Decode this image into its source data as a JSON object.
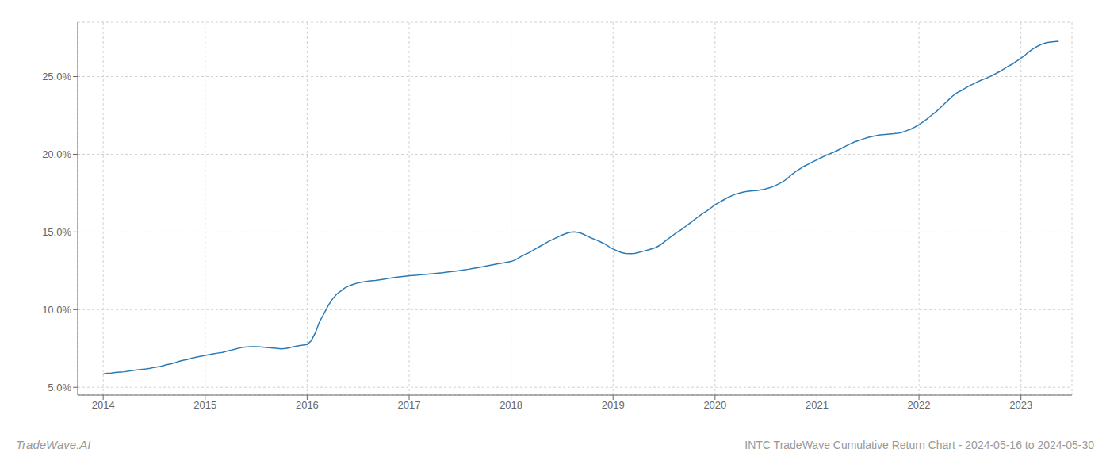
{
  "chart_data": {
    "type": "line",
    "title": "INTC TradeWave Cumulative Return Chart - 2024-05-16 to 2024-05-30",
    "annotations": [
      "TradeWave.AI"
    ],
    "grid": true,
    "xlim": [
      2013.75,
      2023.5
    ],
    "ylim": [
      4.5,
      28.5
    ],
    "xticks": [
      2014,
      2015,
      2016,
      2017,
      2018,
      2019,
      2020,
      2021,
      2022,
      2023
    ],
    "yticks": [
      {
        "value": 5.0,
        "label": "5.0%"
      },
      {
        "value": 10.0,
        "label": "10.0%"
      },
      {
        "value": 15.0,
        "label": "15.0%"
      },
      {
        "value": 20.0,
        "label": "20.0%"
      },
      {
        "value": 25.0,
        "label": "25.0%"
      }
    ],
    "series": [
      {
        "color": "#2a7ab5",
        "x": [
          2014.0,
          2014.04,
          2014.08,
          2014.12,
          2014.17,
          2014.21,
          2014.25,
          2014.29,
          2014.33,
          2014.37,
          2014.42,
          2014.46,
          2014.5,
          2014.54,
          2014.58,
          2014.62,
          2014.67,
          2014.71,
          2014.75,
          2014.79,
          2014.83,
          2014.87,
          2014.92,
          2014.96,
          2015.0,
          2015.04,
          2015.08,
          2015.12,
          2015.17,
          2015.21,
          2015.25,
          2015.29,
          2015.33,
          2015.37,
          2015.42,
          2015.46,
          2015.5,
          2015.54,
          2015.58,
          2015.62,
          2015.67,
          2015.71,
          2015.75,
          2015.79,
          2015.83,
          2015.87,
          2015.92,
          2015.96,
          2016.0,
          2016.04,
          2016.08,
          2016.12,
          2016.17,
          2016.21,
          2016.25,
          2016.29,
          2016.33,
          2016.37,
          2016.42,
          2016.46,
          2016.5,
          2016.54,
          2016.58,
          2016.62,
          2016.67,
          2016.71,
          2016.75,
          2016.79,
          2016.83,
          2016.87,
          2016.92,
          2016.96,
          2017.0,
          2017.04,
          2017.08,
          2017.12,
          2017.17,
          2017.21,
          2017.25,
          2017.29,
          2017.33,
          2017.37,
          2017.42,
          2017.46,
          2017.5,
          2017.54,
          2017.58,
          2017.62,
          2017.67,
          2017.71,
          2017.75,
          2017.79,
          2017.83,
          2017.87,
          2017.92,
          2017.96,
          2018.0,
          2018.04,
          2018.08,
          2018.12,
          2018.17,
          2018.21,
          2018.25,
          2018.29,
          2018.33,
          2018.37,
          2018.42,
          2018.46,
          2018.5,
          2018.54,
          2018.58,
          2018.62,
          2018.67,
          2018.71,
          2018.75,
          2018.79,
          2018.83,
          2018.87,
          2018.92,
          2018.96,
          2019.0,
          2019.04,
          2019.08,
          2019.12,
          2019.17,
          2019.21,
          2019.25,
          2019.29,
          2019.33,
          2019.37,
          2019.42,
          2019.46,
          2019.5,
          2019.54,
          2019.58,
          2019.62,
          2019.67,
          2019.71,
          2019.75,
          2019.79,
          2019.83,
          2019.87,
          2019.92,
          2019.96,
          2020.0,
          2020.04,
          2020.08,
          2020.12,
          2020.17,
          2020.21,
          2020.25,
          2020.29,
          2020.33,
          2020.37,
          2020.42,
          2020.46,
          2020.5,
          2020.54,
          2020.58,
          2020.62,
          2020.67,
          2020.71,
          2020.75,
          2020.79,
          2020.83,
          2020.87,
          2020.92,
          2020.96,
          2021.0,
          2021.04,
          2021.08,
          2021.12,
          2021.17,
          2021.21,
          2021.25,
          2021.29,
          2021.33,
          2021.37,
          2021.42,
          2021.46,
          2021.5,
          2021.54,
          2021.58,
          2021.62,
          2021.67,
          2021.71,
          2021.75,
          2021.79,
          2021.83,
          2021.87,
          2021.92,
          2021.96,
          2022.0,
          2022.04,
          2022.08,
          2022.12,
          2022.17,
          2022.21,
          2022.25,
          2022.29,
          2022.33,
          2022.37,
          2022.42,
          2022.46,
          2022.5,
          2022.54,
          2022.58,
          2022.62,
          2022.67,
          2022.71,
          2022.75,
          2022.79,
          2022.83,
          2022.87,
          2022.92,
          2022.96,
          2023.0,
          2023.04,
          2023.08,
          2023.12,
          2023.17,
          2023.21,
          2023.25,
          2023.29,
          2023.33,
          2023.37
        ],
        "values": [
          5.85,
          5.9,
          5.92,
          5.95,
          5.98,
          6.0,
          6.05,
          6.08,
          6.12,
          6.15,
          6.18,
          6.22,
          6.28,
          6.32,
          6.38,
          6.45,
          6.52,
          6.6,
          6.68,
          6.75,
          6.8,
          6.88,
          6.95,
          7.0,
          7.05,
          7.1,
          7.15,
          7.2,
          7.25,
          7.32,
          7.38,
          7.45,
          7.52,
          7.58,
          7.6,
          7.62,
          7.62,
          7.6,
          7.58,
          7.55,
          7.52,
          7.5,
          7.48,
          7.5,
          7.55,
          7.62,
          7.68,
          7.72,
          7.75,
          8.0,
          8.5,
          9.2,
          9.8,
          10.3,
          10.7,
          11.0,
          11.2,
          11.4,
          11.55,
          11.65,
          11.72,
          11.78,
          11.82,
          11.85,
          11.88,
          11.92,
          11.96,
          12.0,
          12.05,
          12.08,
          12.12,
          12.15,
          12.18,
          12.2,
          12.22,
          12.25,
          12.28,
          12.3,
          12.32,
          12.35,
          12.38,
          12.42,
          12.45,
          12.48,
          12.52,
          12.56,
          12.6,
          12.65,
          12.7,
          12.75,
          12.8,
          12.85,
          12.9,
          12.95,
          13.0,
          13.05,
          13.1,
          13.2,
          13.35,
          13.5,
          13.65,
          13.8,
          13.95,
          14.1,
          14.25,
          14.4,
          14.55,
          14.68,
          14.8,
          14.9,
          14.98,
          15.0,
          14.95,
          14.85,
          14.72,
          14.6,
          14.5,
          14.38,
          14.22,
          14.05,
          13.9,
          13.78,
          13.68,
          13.62,
          13.6,
          13.62,
          13.68,
          13.75,
          13.82,
          13.9,
          14.0,
          14.15,
          14.35,
          14.55,
          14.75,
          14.95,
          15.15,
          15.35,
          15.55,
          15.75,
          15.95,
          16.15,
          16.35,
          16.55,
          16.75,
          16.9,
          17.05,
          17.2,
          17.35,
          17.45,
          17.52,
          17.58,
          17.62,
          17.65,
          17.68,
          17.72,
          17.78,
          17.85,
          17.95,
          18.08,
          18.25,
          18.45,
          18.68,
          18.88,
          19.05,
          19.22,
          19.38,
          19.52,
          19.65,
          19.78,
          19.9,
          20.02,
          20.15,
          20.28,
          20.42,
          20.55,
          20.68,
          20.8,
          20.9,
          21.0,
          21.08,
          21.15,
          21.2,
          21.25,
          21.28,
          21.3,
          21.32,
          21.35,
          21.4,
          21.5,
          21.62,
          21.75,
          21.9,
          22.08,
          22.28,
          22.5,
          22.75,
          23.0,
          23.25,
          23.5,
          23.75,
          23.95,
          24.12,
          24.28,
          24.42,
          24.55,
          24.68,
          24.8,
          24.92,
          25.05,
          25.18,
          25.32,
          25.48,
          25.65,
          25.82,
          26.0,
          26.18,
          26.38,
          26.6,
          26.8,
          26.98,
          27.1,
          27.18,
          27.22,
          27.25,
          27.28
        ]
      }
    ]
  }
}
